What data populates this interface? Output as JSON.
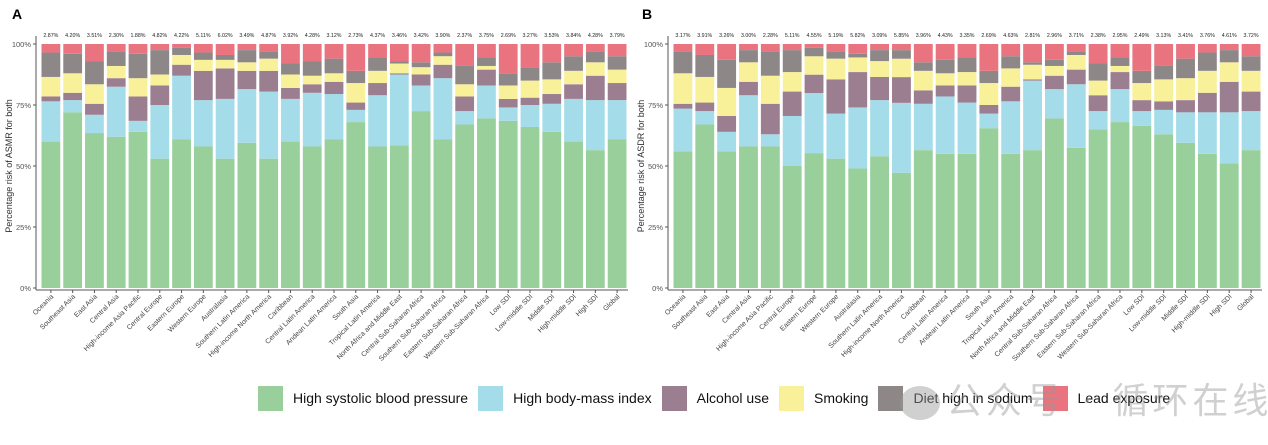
{
  "chart_data": [
    {
      "type": "bar",
      "stacked": true,
      "panel_label": "A",
      "title": "",
      "xlabel": "",
      "ylabel": "Percentage risk of ASMR for both",
      "ylim": [
        0,
        1
      ],
      "yticks": [
        "0%",
        "25%",
        "50%",
        "75%",
        "100%"
      ],
      "grid": false,
      "categories": [
        "Oceania",
        "Southeast Asia",
        "East Asia",
        "Central Asia",
        "High-income Asia Pacific",
        "Central Europe",
        "Eastern Europe",
        "Western Europe",
        "Australasia",
        "Southern Latin America",
        "High-income North America",
        "Caribbean",
        "Central Latin America",
        "Andean Latin America",
        "South Asia",
        "Tropical Latin America",
        "North Africa and Middle East",
        "Central Sub-Saharan Africa",
        "Southern Sub-Saharan Africa",
        "Eastern Sub-Saharan Africa",
        "Western Sub-Saharan Africa",
        "Low SDI",
        "Low-middle SDI",
        "Middle SDI",
        "High-middle SDI",
        "High SDI",
        "Global"
      ],
      "top_labels": [
        "2.87%",
        "4.20%",
        "3.51%",
        "2.30%",
        "1.88%",
        "4.82%",
        "4.22%",
        "5.11%",
        "6.02%",
        "3.49%",
        "4.87%",
        "3.92%",
        "4.28%",
        "3.12%",
        "2.73%",
        "4.37%",
        "3.46%",
        "3.42%",
        "3.90%",
        "2.37%",
        "3.75%",
        "2.69%",
        "3.27%",
        "3.53%",
        "3.84%",
        "4.28%",
        "3.79%"
      ],
      "series": [
        {
          "name": "High systolic blood pressure",
          "values": [
            60,
            72,
            63.5,
            62,
            64,
            53,
            61,
            58,
            53,
            59.5,
            53,
            60,
            58,
            61,
            68,
            58,
            58.5,
            72.5,
            61,
            67,
            69.5,
            68.5,
            66,
            64,
            60,
            56.5,
            61
          ]
        },
        {
          "name": "High body-mass index",
          "values": [
            16.5,
            5,
            7.5,
            20.5,
            4.5,
            22,
            26,
            19,
            24.5,
            22,
            27.5,
            17.5,
            22,
            18.5,
            5,
            21,
            29,
            10.5,
            25,
            5.5,
            13.5,
            5.5,
            9,
            11.5,
            17.5,
            20.5,
            16
          ]
        },
        {
          "name": "Alcohol use",
          "values": [
            2,
            3,
            4.5,
            3.5,
            10,
            8,
            4.5,
            12,
            12.5,
            7.5,
            8.5,
            4.5,
            3.5,
            5,
            3,
            5,
            0.5,
            4.5,
            5.5,
            6,
            6.5,
            3.5,
            3,
            4,
            6,
            10,
            7
          ]
        },
        {
          "name": "Smoking",
          "values": [
            8,
            8,
            8,
            5,
            7.5,
            4.5,
            4,
            4.5,
            3.5,
            3.5,
            5,
            5.5,
            3.5,
            3.5,
            8,
            5,
            4,
            3,
            3.5,
            5,
            1.5,
            5.5,
            7,
            6,
            5.5,
            5.5,
            5.5
          ]
        },
        {
          "name": "Diet high in sodium",
          "values": [
            10,
            8,
            9.5,
            6,
            10,
            10,
            3,
            3,
            2,
            5,
            3,
            4.5,
            6,
            6,
            5,
            5.5,
            1,
            2,
            1.5,
            7.5,
            3.5,
            5,
            5.5,
            7,
            6,
            4.5,
            5.5
          ]
        },
        {
          "name": "Lead exposure",
          "values": [
            3.5,
            4,
            7,
            3,
            4,
            2.5,
            1.5,
            3.5,
            4.5,
            2.5,
            3,
            8,
            7,
            6,
            11,
            5.5,
            7,
            7.5,
            3.5,
            9,
            5.5,
            12,
            9.5,
            7.5,
            5,
            3,
            5
          ]
        }
      ]
    },
    {
      "type": "bar",
      "stacked": true,
      "panel_label": "B",
      "title": "",
      "xlabel": "",
      "ylabel": "Percentage risk of ASDR for both",
      "ylim": [
        0,
        1
      ],
      "yticks": [
        "0%",
        "25%",
        "50%",
        "75%",
        "100%"
      ],
      "grid": false,
      "categories": [
        "Oceania",
        "Southeast Asia",
        "East Asia",
        "Central Asia",
        "High-income Asia Pacific",
        "Central Europe",
        "Eastern Europe",
        "Western Europe",
        "Australasia",
        "Southern Latin America",
        "High-income North America",
        "Caribbean",
        "Central Latin America",
        "Andean Latin America",
        "South Asia",
        "Tropical Latin America",
        "North Africa and Middle East",
        "Central Sub-Saharan Africa",
        "Southern Sub-Saharan Africa",
        "Eastern Sub-Saharan Africa",
        "Western Sub-Saharan Africa",
        "Low SDI",
        "Low-middle SDI",
        "Middle SDI",
        "High-middle SDI",
        "High SDI",
        "Global"
      ],
      "top_labels": [
        "3.17%",
        "3.91%",
        "3.26%",
        "3.00%",
        "2.28%",
        "5.11%",
        "4.55%",
        "5.19%",
        "5.82%",
        "3.09%",
        "5.85%",
        "3.96%",
        "4.43%",
        "3.35%",
        "2.69%",
        "4.63%",
        "2.81%",
        "2.96%",
        "3.71%",
        "2.38%",
        "2.95%",
        "2.49%",
        "3.13%",
        "3.41%",
        "3.76%",
        "4.61%",
        "3.72%"
      ],
      "series": [
        {
          "name": "High systolic blood pressure",
          "values": [
            56,
            67,
            56,
            58,
            58,
            50,
            55,
            53,
            49,
            54,
            47,
            56.5,
            55,
            55,
            65.5,
            55,
            56.5,
            69.5,
            57.5,
            65,
            68,
            66.5,
            63,
            59.5,
            55,
            51,
            56.5
          ]
        },
        {
          "name": "High body-mass index",
          "values": [
            17.5,
            5.5,
            8,
            21,
            5,
            20.5,
            24.5,
            18.5,
            25,
            23,
            28.5,
            19,
            23.5,
            21,
            6,
            21.5,
            28.5,
            12,
            26,
            7.5,
            13.5,
            6,
            10,
            12.5,
            17,
            21,
            16
          ]
        },
        {
          "name": "Alcohol use",
          "values": [
            2,
            3.5,
            6.5,
            5.5,
            12.5,
            10,
            7.5,
            14,
            14.5,
            9.5,
            10.5,
            5.5,
            4.5,
            7,
            3.5,
            6,
            0.5,
            5.5,
            6,
            6.5,
            7,
            4.5,
            3.5,
            5,
            8,
            12.5,
            8
          ]
        },
        {
          "name": "Smoking",
          "values": [
            12.5,
            10.5,
            11.5,
            8,
            11.5,
            8,
            7.5,
            8.5,
            6,
            6.5,
            7.5,
            8,
            5,
            5.5,
            9,
            7.5,
            6,
            4,
            6,
            6,
            2.5,
            7,
            9,
            9,
            9,
            8,
            8.5
          ]
        },
        {
          "name": "Diet high in sodium",
          "values": [
            9,
            9,
            11.5,
            5,
            10,
            9,
            3.5,
            3,
            1.5,
            4.5,
            3.5,
            3.5,
            5.5,
            6,
            5,
            5,
            1,
            2.5,
            1.5,
            7,
            3.5,
            5,
            5.5,
            8,
            7.5,
            5,
            6
          ]
        },
        {
          "name": "Lead exposure",
          "values": [
            3,
            4.5,
            6.5,
            2.5,
            3,
            2.5,
            1.5,
            3,
            4,
            2.5,
            2.5,
            7.5,
            6.5,
            5.5,
            11,
            5,
            7.5,
            6.5,
            3,
            8,
            5.5,
            11,
            9,
            6,
            3.5,
            2.5,
            5
          ]
        }
      ]
    }
  ],
  "colors": {
    "High systolic blood pressure": "#98CF9B",
    "High body-mass index": "#A5DCE9",
    "Alcohol use": "#9C7E91",
    "Smoking": "#F9F09A",
    "Diet high in sodium": "#8E8788",
    "Lead exposure": "#E97480"
  },
  "legend": {
    "position": "bottom",
    "items": [
      "High systolic blood pressure",
      "High body-mass index",
      "Alcohol use",
      "Smoking",
      "Diet high in sodium",
      "Lead exposure"
    ]
  },
  "watermark": "公众号 · 循环在线"
}
